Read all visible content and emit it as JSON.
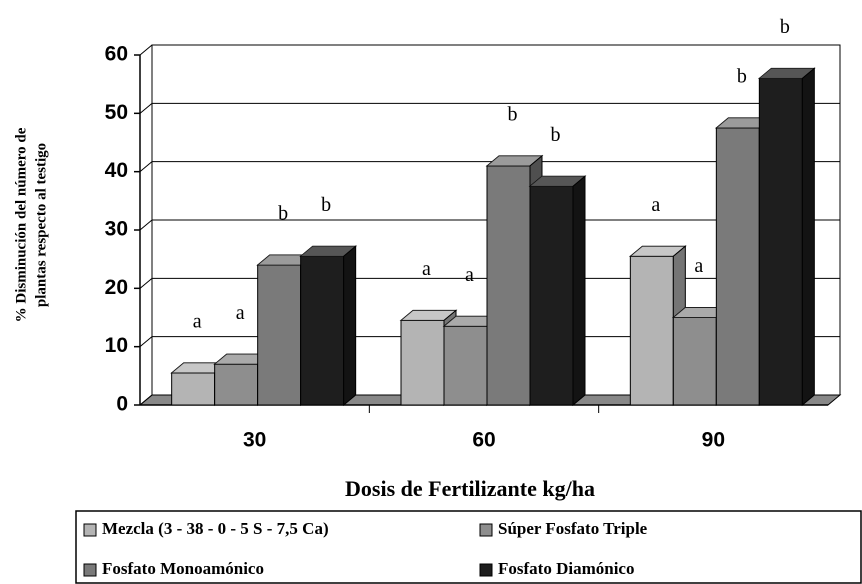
{
  "chart_data": {
    "type": "bar3d",
    "y_label": [
      "% Disminución del número de",
      "plantas respecto al testigo"
    ],
    "x_label": "Dosis de Fertilizante kg/ha",
    "categories": [
      "30",
      "60",
      "90"
    ],
    "series": [
      {
        "name": "Mezcla (3 - 38 - 0 - 5 S - 7,5 Ca)",
        "color": "#b4b4b4",
        "values": [
          5.5,
          14.5,
          25.5
        ],
        "letters": [
          "a",
          "a",
          "a"
        ]
      },
      {
        "name": "Súper Fosfato Triple",
        "color": "#8e8e8e",
        "values": [
          7,
          13.5,
          15
        ],
        "letters": [
          "a",
          "a",
          "a"
        ]
      },
      {
        "name": "Fosfato Monoamónico",
        "color": "#7a7a7a",
        "values": [
          24,
          41,
          47.5
        ],
        "letters": [
          "b",
          "b",
          "b"
        ]
      },
      {
        "name": "Fosfato Diamónico",
        "color": "#1e1e1e",
        "values": [
          25.5,
          37.5,
          56
        ],
        "letters": [
          "b",
          "b",
          "b"
        ]
      }
    ],
    "ylim": [
      0,
      60
    ],
    "yticks": [
      0,
      10,
      20,
      30,
      40,
      50,
      60
    ],
    "grid": true
  }
}
